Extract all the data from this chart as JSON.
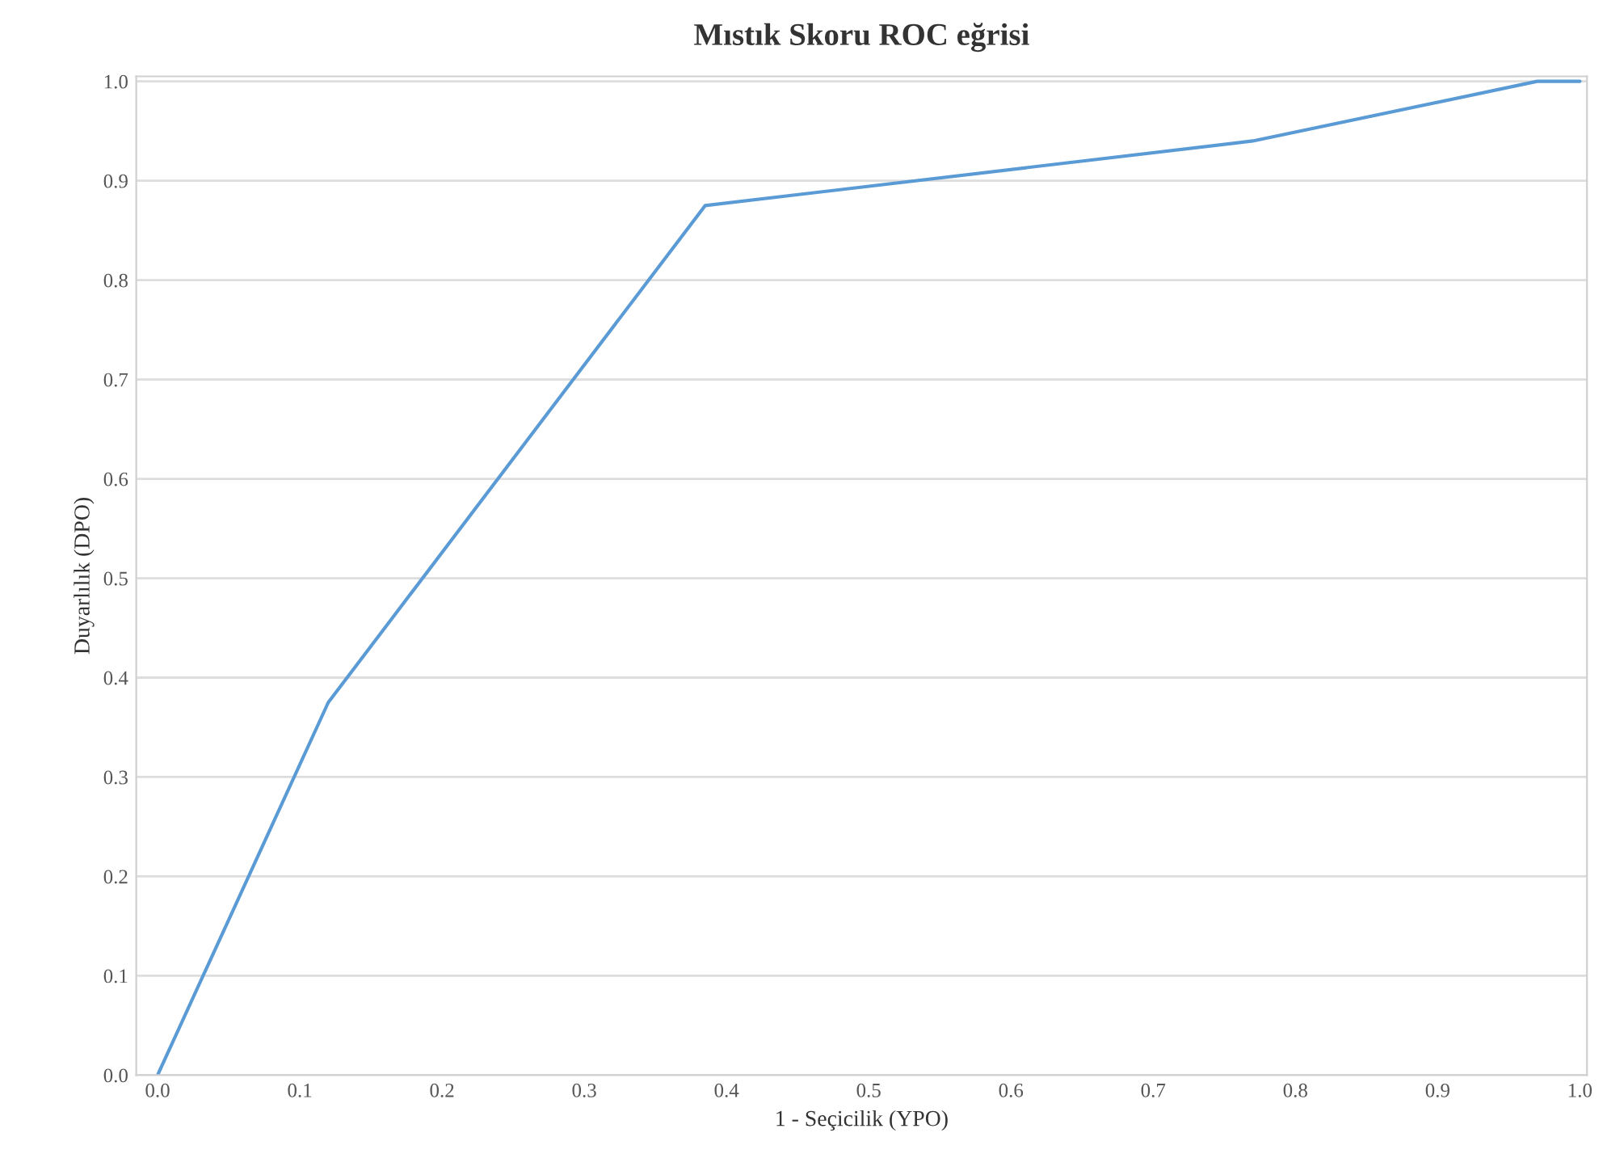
{
  "chart_data": {
    "type": "line",
    "title": "Mıstık Skoru ROC eğrisi",
    "xlabel": "1 - Seçicilik (YPO)",
    "ylabel": "Duyarlılık (DPO)",
    "series": [
      {
        "color": "#5b9bd5",
        "x": [
          0.0,
          0.12,
          0.385,
          0.77,
          0.97,
          1.0
        ],
        "values": [
          0.0,
          0.375,
          0.875,
          0.94,
          1.0,
          1.0
        ]
      }
    ],
    "xlim": [
      -0.015,
      1.005
    ],
    "ylim": [
      0.0,
      1.005
    ],
    "xticks": [
      {
        "value": 0,
        "label": "0.0"
      },
      0.1,
      0.2,
      0.3,
      0.4,
      0.5,
      0.6,
      0.7,
      0.8,
      0.9,
      {
        "value": 1,
        "label": "1.0"
      }
    ],
    "yticks": [
      {
        "value": 0,
        "label": "0.0"
      },
      0.1,
      0.2,
      0.3,
      0.4,
      0.5,
      0.6,
      0.7,
      0.8,
      0.9,
      {
        "value": 1,
        "label": "1.0"
      }
    ],
    "grid": "y",
    "line_style": "solid"
  }
}
